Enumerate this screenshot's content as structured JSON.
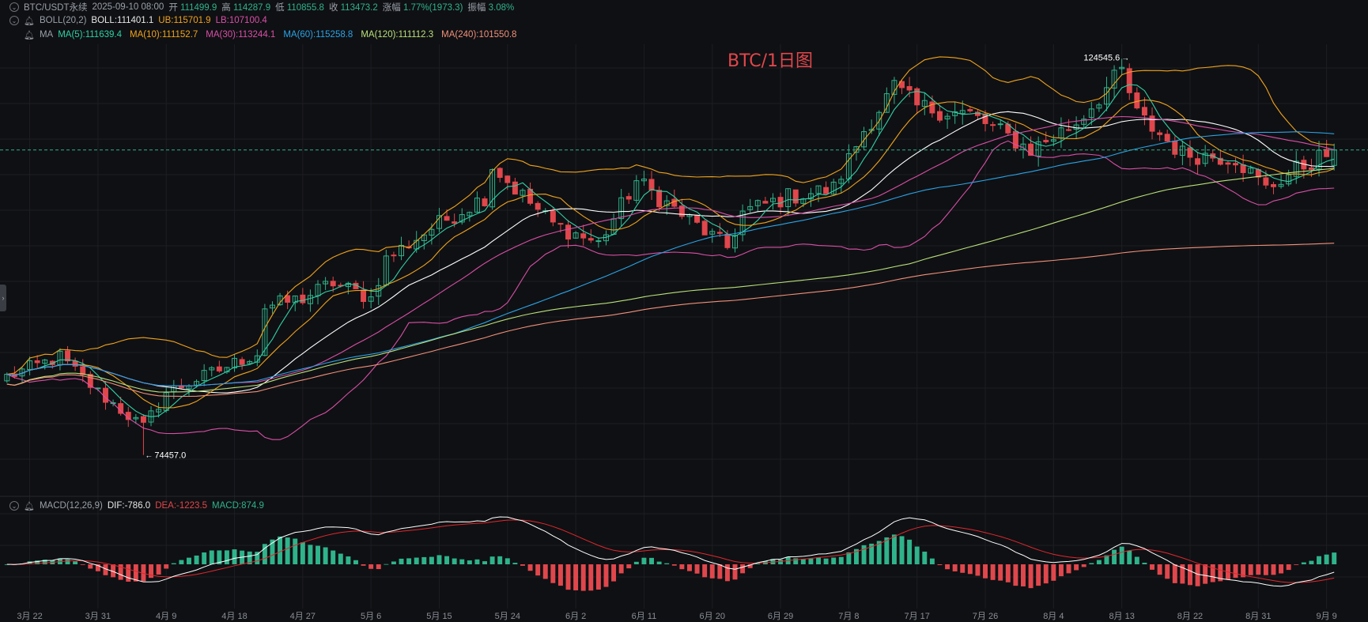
{
  "header": {
    "symbol": "BTC/USDT永续",
    "datetime": "2025-09-10 08:00",
    "open_label": "开",
    "open_value": "111499.9",
    "high_label": "高",
    "high_value": "114287.9",
    "low_label": "低",
    "low_value": "110855.8",
    "close_label": "收",
    "close_value": "113473.2",
    "change_label": "涨幅",
    "change_value": "1.77%(1973.3)",
    "amplitude_label": "振幅",
    "amplitude_value": "3.08%"
  },
  "boll": {
    "label": "BOLL(20,2)",
    "mid": "BOLL:111401.1",
    "ub": "UB:115701.9",
    "lb": "LB:107100.4"
  },
  "ma": {
    "label": "MA",
    "items": [
      {
        "text": "MA(5):111639.4",
        "color": "#2fd0a6"
      },
      {
        "text": "MA(10):111152.7",
        "color": "#f0a31c"
      },
      {
        "text": "MA(30):113244.1",
        "color": "#d94fa8"
      },
      {
        "text": "MA(60):115258.8",
        "color": "#2aa3e6"
      },
      {
        "text": "MA(120):111112.3",
        "color": "#b9e07a"
      },
      {
        "text": "MA(240):101550.8",
        "color": "#f0907a"
      }
    ]
  },
  "macd_header": {
    "label": "MACD(12,26,9)",
    "dif": "DIF:-786.0",
    "dea": "DEA:-1223.5",
    "macd": "MACD:874.9"
  },
  "watermark": "BTC/1日图",
  "annotations": {
    "high": "124545.6",
    "low": "74457.0"
  },
  "colors": {
    "background": "#0f1013",
    "up": "#2fb38a",
    "down": "#e0474c",
    "boll_band": "#f0a31c",
    "boll_mid": "#ffffff",
    "dif": "#ffffff",
    "dea": "#e0282e"
  },
  "chart_data": [
    {
      "type": "candlestick",
      "title": "BTC/1日图",
      "x_tick_labels": [
        "3月 22",
        "3月 31",
        "4月 9",
        "4月 18",
        "4月 27",
        "5月 6",
        "5月 15",
        "5月 24",
        "6月 2",
        "6月 11",
        "6月 20",
        "6月 29",
        "7月 8",
        "7月 17",
        "7月 26",
        "8月 4",
        "8月 13",
        "8月 22",
        "8月 31",
        "9月 9"
      ],
      "period_start": "2025-03-19",
      "period_end": "2025-09-10",
      "y_range": [
        72000,
        127000
      ],
      "grid": true,
      "price_line": 113473.2,
      "last_candle": {
        "open": 111499.9,
        "high": 114287.9,
        "low": 110855.8,
        "close": 113473.2
      },
      "extremes": {
        "high": 124545.6,
        "low": 74457.0
      },
      "close_anchors": [
        [
          "2025-03-19",
          84500
        ],
        [
          "2025-03-26",
          87000
        ],
        [
          "2025-03-31",
          82500
        ],
        [
          "2025-04-06",
          78000
        ],
        [
          "2025-04-09",
          82500
        ],
        [
          "2025-04-14",
          84500
        ],
        [
          "2025-04-21",
          87500
        ],
        [
          "2025-04-22",
          93400
        ],
        [
          "2025-04-27",
          94500
        ],
        [
          "2025-05-01",
          96500
        ],
        [
          "2025-05-06",
          94500
        ],
        [
          "2025-05-08",
          99500
        ],
        [
          "2025-05-14",
          103500
        ],
        [
          "2025-05-21",
          107500
        ],
        [
          "2025-05-22",
          111500
        ],
        [
          "2025-05-25",
          108500
        ],
        [
          "2025-05-30",
          104000
        ],
        [
          "2025-06-05",
          101500
        ],
        [
          "2025-06-10",
          109500
        ],
        [
          "2025-06-17",
          104500
        ],
        [
          "2025-06-22",
          101000
        ],
        [
          "2025-06-24",
          105500
        ],
        [
          "2025-06-30",
          107500
        ],
        [
          "2025-07-06",
          108500
        ],
        [
          "2025-07-10",
          116000
        ],
        [
          "2025-07-14",
          121500
        ],
        [
          "2025-07-17",
          119000
        ],
        [
          "2025-07-24",
          118000
        ],
        [
          "2025-08-01",
          113500
        ],
        [
          "2025-08-07",
          117000
        ],
        [
          "2025-08-13",
          123500
        ],
        [
          "2025-08-15",
          118000
        ],
        [
          "2025-08-21",
          113000
        ],
        [
          "2025-08-28",
          112500
        ],
        [
          "2025-09-01",
          108500
        ],
        [
          "2025-09-05",
          111000
        ],
        [
          "2025-09-10",
          113473.2
        ]
      ],
      "indicators": {
        "BOLL(20,2)": {
          "BOLL": 111401.1,
          "UB": 115701.9,
          "LB": 107100.4
        },
        "MA(5)": 111639.4,
        "MA(10)": 111152.7,
        "MA(30)": 113244.1,
        "MA(60)": 115258.8,
        "MA(120)": 111112.3,
        "MA(240)": 101550.8
      }
    },
    {
      "type": "bar+line",
      "title": "MACD(12,26,9)",
      "x_tick_labels": [
        "3月 22",
        "3月 31",
        "4月 9",
        "4月 18",
        "4月 27",
        "5月 6",
        "5月 15",
        "5月 24",
        "6月 2",
        "6月 11",
        "6月 20",
        "6月 29",
        "7月 8",
        "7月 17",
        "7月 26",
        "8月 4",
        "8月 13",
        "8月 22",
        "8月 31",
        "9月 9"
      ],
      "last": {
        "DIF": -786.0,
        "DEA": -1223.5,
        "MACD": 874.9
      }
    }
  ]
}
